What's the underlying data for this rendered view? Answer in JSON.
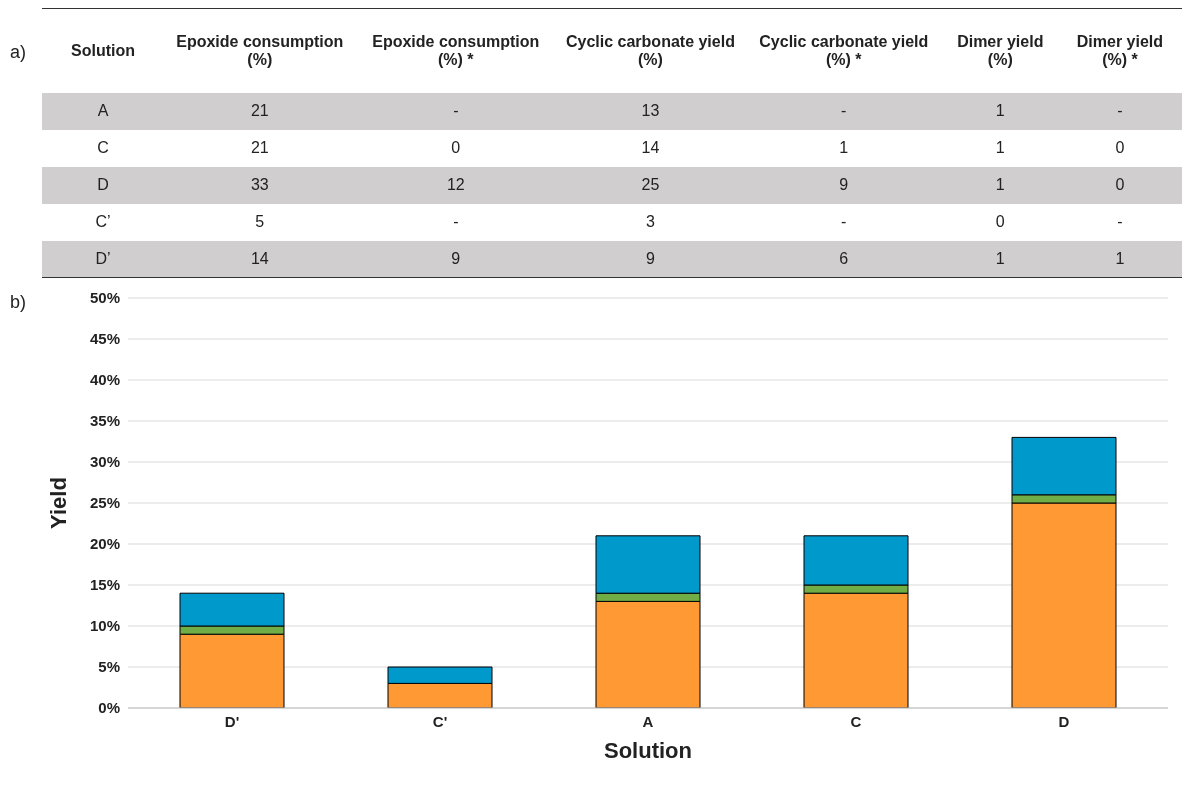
{
  "chart_data": [
    {
      "type": "other",
      "annotations": [
        "a)"
      ],
      "categories": [
        "Solution",
        "Epoxide consumption (%)",
        "Epoxide consumption (%) *",
        "Cyclic carbonate yield (%)",
        "Cyclic carbonate yield (%) *",
        "Dimer yield (%)",
        "Dimer yield (%) *"
      ],
      "cell_labels": [
        [
          "A",
          "21",
          "-",
          "13",
          "-",
          "1",
          "-"
        ],
        [
          "C",
          "21",
          "0",
          "14",
          "1",
          "1",
          "0"
        ],
        [
          "D",
          "33",
          "12",
          "25",
          "9",
          "1",
          "0"
        ],
        [
          "C’",
          "5",
          "-",
          "3",
          "-",
          "0",
          "-"
        ],
        [
          "D’",
          "14",
          "9",
          "9",
          "6",
          "1",
          "1"
        ]
      ]
    },
    {
      "type": "bar",
      "stacked": true,
      "annotations": [
        "b)"
      ],
      "xlabel": "Solution",
      "ylabel": "Yield",
      "categories": [
        "D'",
        "C'",
        "A",
        "C",
        "D"
      ],
      "series": [
        {
          "color": "#ff9933",
          "values": [
            9,
            3,
            13,
            14,
            25
          ]
        },
        {
          "color": "#70ad47",
          "values": [
            1,
            0,
            1,
            1,
            1
          ]
        },
        {
          "color": "#0099cc",
          "values": [
            4,
            2,
            7,
            6,
            7
          ]
        }
      ],
      "ylim": [
        0,
        50
      ],
      "yticks": [
        {
          "value": 0,
          "label": "0%"
        },
        {
          "value": 5,
          "label": "5%"
        },
        {
          "value": 10,
          "label": "10%"
        },
        {
          "value": 15,
          "label": "15%"
        },
        {
          "value": 20,
          "label": "20%"
        },
        {
          "value": 25,
          "label": "25%"
        },
        {
          "value": 30,
          "label": "30%"
        },
        {
          "value": 35,
          "label": "35%"
        },
        {
          "value": 40,
          "label": "40%"
        },
        {
          "value": 45,
          "label": "45%"
        },
        {
          "value": 50,
          "label": "50%"
        }
      ],
      "grid": "y"
    }
  ]
}
